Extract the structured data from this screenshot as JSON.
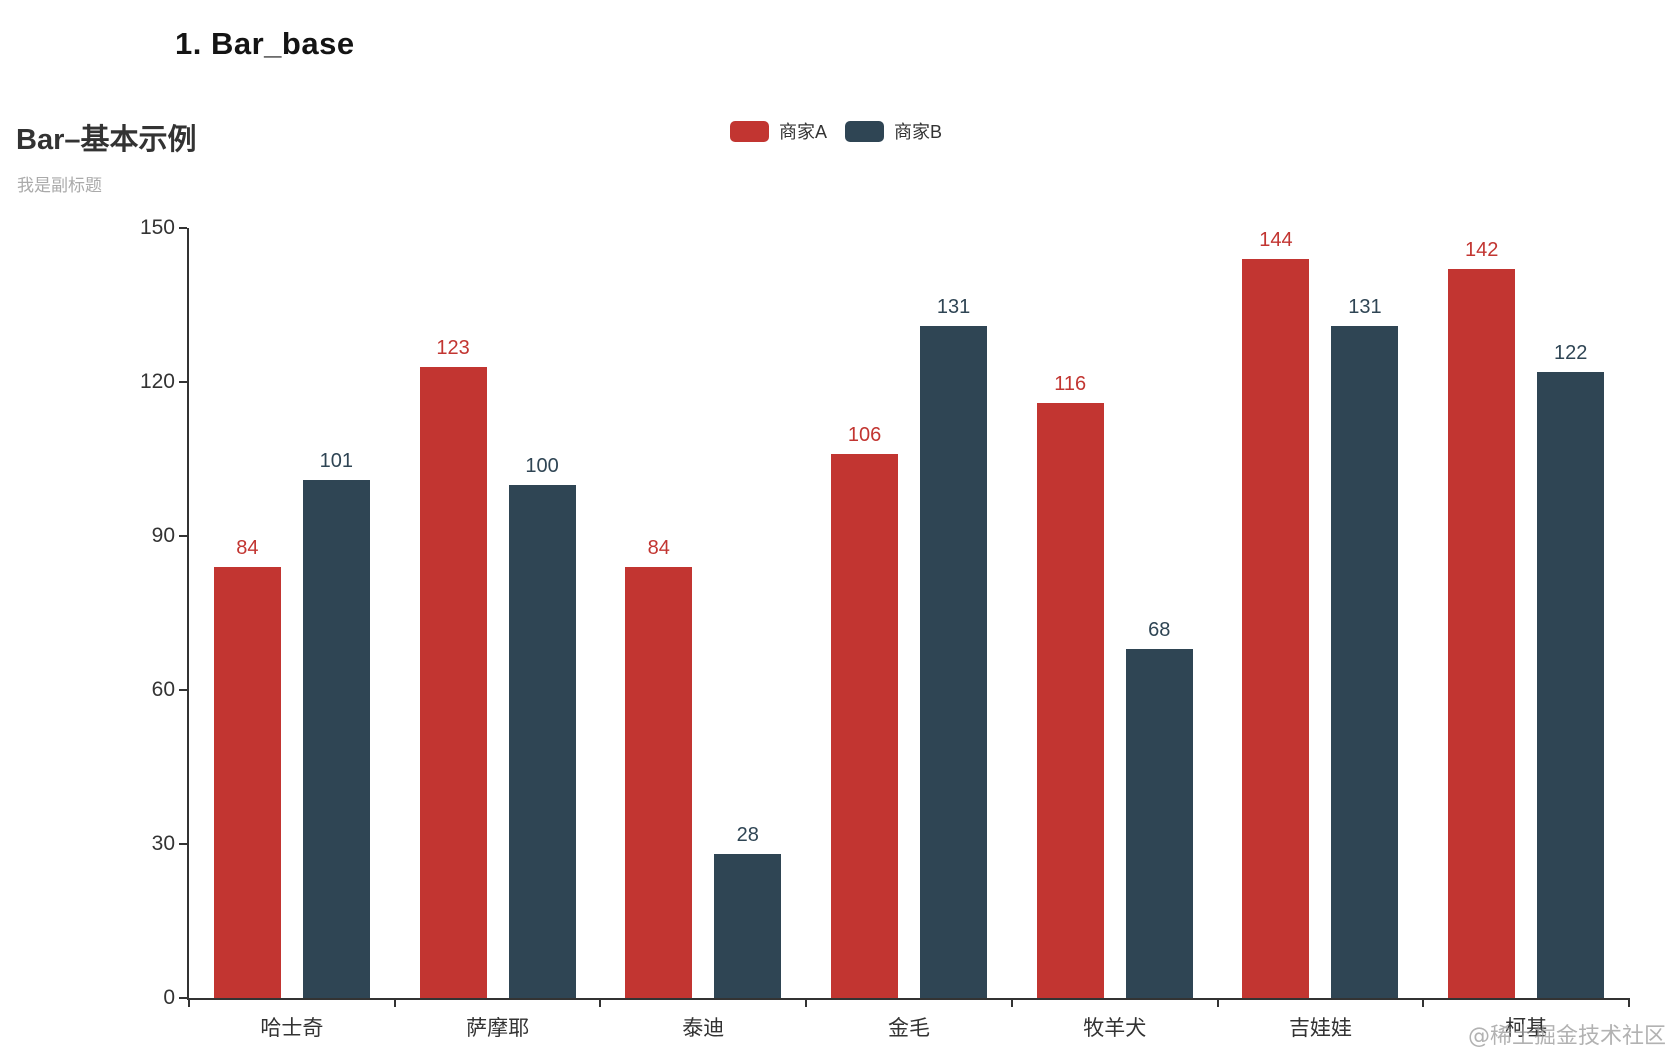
{
  "page": {
    "heading": "1. Bar_base"
  },
  "chart": {
    "title": "Bar–基本示例",
    "subtitle": "我是副标题",
    "watermark": "@稀土掘金技术社区",
    "colors": {
      "series_a": "#c23531",
      "series_b": "#2f4554",
      "axis": "#333333",
      "subtitle_text": "#aaaaaa"
    }
  },
  "chart_data": {
    "type": "bar",
    "categories": [
      "哈士奇",
      "萨摩耶",
      "泰迪",
      "金毛",
      "牧羊犬",
      "吉娃娃",
      "柯基"
    ],
    "series": [
      {
        "name": "商家A",
        "color": "#c23531",
        "values": [
          84,
          123,
          84,
          106,
          116,
          144,
          142
        ]
      },
      {
        "name": "商家B",
        "color": "#2f4554",
        "values": [
          101,
          100,
          28,
          131,
          68,
          131,
          122
        ]
      }
    ],
    "title": "Bar–基本示例",
    "subtitle": "我是副标题",
    "xlabel": "",
    "ylabel": "",
    "ylim": [
      0,
      150
    ],
    "yticks": [
      0,
      30,
      60,
      90,
      120,
      150
    ],
    "legend_position": "top-center",
    "grid": false,
    "value_labels": true
  }
}
